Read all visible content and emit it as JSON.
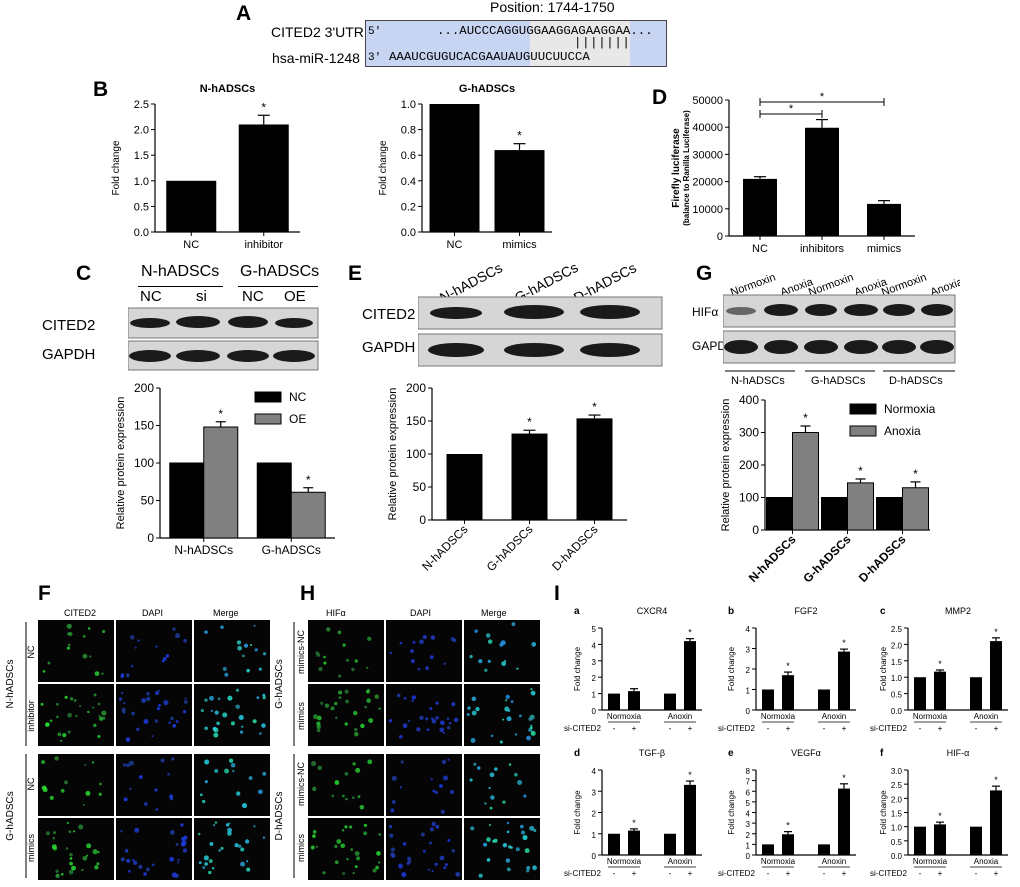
{
  "panelA": {
    "label": "A",
    "position_text": "Position: 1744-1750",
    "row1_name": "CITED2 3'UTR",
    "row1_prime": "5'",
    "row1_seq": "...AUCCCAGGUGGAAGGAGAAGGAA...",
    "row2_name": "hsa-miR-1248",
    "row2_prime": "3'",
    "row2_seq": "AAAUCGUGUCACGAAUAUGUUCUUCCA",
    "pairing": "| | | | | | |",
    "colors": {
      "box": "#c7d4f2",
      "highlight": "#e8e8e8"
    }
  },
  "panelB": {
    "label": "B"
  },
  "panelC": {
    "label": "C",
    "group1": "N-hADSCs",
    "group2": "G-hADSCs",
    "lanes": [
      "NC",
      "si",
      "NC",
      "OE"
    ],
    "bands": [
      "CITED2",
      "GAPDH"
    ]
  },
  "panelD": {
    "label": "D"
  },
  "panelE": {
    "label": "E",
    "lanes": [
      "N-hADSCs",
      "G-hADSCs",
      "D-hADSCs"
    ],
    "bands": [
      "CITED2",
      "GAPDH"
    ]
  },
  "panelF": {
    "label": "F",
    "headers": [
      "CITED2",
      "DAPI",
      "Merge"
    ],
    "group1": "N-hADSCs",
    "group2": "G-hADSCs",
    "rows": [
      "NC",
      "inhibitor",
      "NC",
      "mimics"
    ]
  },
  "panelG": {
    "label": "G",
    "lanes": [
      "Normoxin",
      "Anoxia",
      "Normoxin",
      "Anoxia",
      "Normoxin",
      "Anoxia"
    ],
    "bands": [
      "HIFα",
      "GAPDH"
    ],
    "groups": [
      "N-hADSCs",
      "G-hADSCs",
      "D-hADSCs"
    ]
  },
  "panelH": {
    "label": "H",
    "headers": [
      "HIFα",
      "DAPI",
      "Merge"
    ],
    "group1": "G-hADSCs",
    "group2": "D-hADSCs",
    "rows": [
      "mimics-NC",
      "mimics",
      "mimics-NC",
      "mimics"
    ]
  },
  "panelI": {
    "label": "I",
    "si_label": "si-CITED2",
    "minus": "-",
    "plus": "+"
  },
  "chart_data": [
    {
      "id": "B1",
      "type": "bar",
      "title": "N-hADSCs",
      "ylabel": "Fold change",
      "categories": [
        "NC",
        "inhibitor"
      ],
      "values": [
        1.0,
        2.1
      ],
      "errors": [
        0,
        0.18
      ],
      "sig": [
        "",
        "*"
      ],
      "ylim": [
        0,
        2.5
      ],
      "yticks": [
        0,
        0.5,
        1.0,
        1.5,
        2.0,
        2.5
      ]
    },
    {
      "id": "B2",
      "type": "bar",
      "title": "G-hADSCs",
      "ylabel": "Fold change",
      "categories": [
        "NC",
        "mimics"
      ],
      "values": [
        1.0,
        0.64
      ],
      "errors": [
        0,
        0.05
      ],
      "sig": [
        "",
        "*"
      ],
      "ylim": [
        0,
        1.0
      ],
      "yticks": [
        0,
        0.2,
        0.4,
        0.6,
        0.8,
        1.0
      ]
    },
    {
      "id": "D",
      "type": "bar",
      "ylabel": "Firefly luciferase",
      "ylabel2": "(balance to Ranilla Luciferase)",
      "categories": [
        "NC",
        "inhibitors",
        "mimics"
      ],
      "values": [
        21000,
        39800,
        11800
      ],
      "errors": [
        800,
        3000,
        1200
      ],
      "ylim": [
        0,
        50000
      ],
      "yticks": [
        0,
        10000,
        20000,
        30000,
        40000,
        50000
      ],
      "brackets": [
        {
          "from": 0,
          "to": 1,
          "label": "*"
        },
        {
          "from": 0,
          "to": 2,
          "label": "*"
        }
      ]
    },
    {
      "id": "C",
      "type": "bar",
      "ylabel": "Relative protein expression",
      "categories": [
        "N-hADSCs",
        "G-hADSCs"
      ],
      "series": [
        {
          "name": "NC",
          "values": [
            100,
            100
          ],
          "errors": [
            0,
            0
          ],
          "sig": [
            "",
            ""
          ],
          "color": "#000000"
        },
        {
          "name": "OE",
          "values": [
            148,
            61
          ],
          "errors": [
            7,
            6
          ],
          "sig": [
            "*",
            "*"
          ],
          "color": "#808080"
        }
      ],
      "ylim": [
        0,
        200
      ],
      "yticks": [
        0,
        50,
        100,
        150,
        200
      ],
      "legend": "top-right"
    },
    {
      "id": "E",
      "type": "bar",
      "ylabel": "Relative protein expression",
      "categories": [
        "N-hADSCs",
        "G-hADSCs",
        "D-hADSCs"
      ],
      "values": [
        100,
        131,
        154
      ],
      "errors": [
        0,
        5,
        5
      ],
      "sig": [
        "",
        "*",
        "*"
      ],
      "ylim": [
        0,
        200
      ],
      "yticks": [
        0,
        50,
        100,
        150,
        200
      ]
    },
    {
      "id": "G",
      "type": "bar",
      "ylabel": "Relative protein expression",
      "categories": [
        "N-hADSCs",
        "G-hADSCs",
        "D-hADSCs"
      ],
      "series": [
        {
          "name": "Normoxia",
          "values": [
            100,
            100,
            100
          ],
          "errors": [
            0,
            0,
            0
          ],
          "sig": [
            "",
            "",
            ""
          ],
          "color": "#000000"
        },
        {
          "name": "Anoxia",
          "values": [
            300,
            145,
            130
          ],
          "errors": [
            20,
            12,
            18
          ],
          "sig": [
            "*",
            "*",
            "*"
          ],
          "color": "#808080"
        }
      ],
      "ylim": [
        0,
        400
      ],
      "yticks": [
        0,
        100,
        200,
        300,
        400
      ],
      "legend": "top-right"
    },
    {
      "id": "Ia",
      "sub": "a",
      "type": "bar",
      "title": "CXCR4",
      "ylabel": "Fold change",
      "groups": [
        "Normoxia",
        "Anoxin"
      ],
      "values": [
        1.0,
        1.15,
        1.0,
        4.2
      ],
      "errors": [
        0,
        0.15,
        0,
        0.15
      ],
      "sig": [
        "",
        "",
        "",
        "*"
      ],
      "ylim": [
        0,
        5
      ],
      "yticks": [
        0,
        1,
        2,
        3,
        4,
        5
      ]
    },
    {
      "id": "Ib",
      "sub": "b",
      "type": "bar",
      "title": "FGF2",
      "ylabel": "Fold change",
      "groups": [
        "Normoxia",
        "Anoxin"
      ],
      "values": [
        1.0,
        1.7,
        1.0,
        2.85
      ],
      "errors": [
        0,
        0.15,
        0,
        0.12
      ],
      "sig": [
        "",
        "*",
        "",
        "*"
      ],
      "ylim": [
        0,
        4
      ],
      "yticks": [
        0,
        1,
        2,
        3,
        4
      ]
    },
    {
      "id": "Ic",
      "sub": "c",
      "type": "bar",
      "title": "MMP2",
      "ylabel": "Fold change",
      "groups": [
        "Normoxia",
        "Anoxin"
      ],
      "values": [
        1.0,
        1.17,
        1.0,
        2.1
      ],
      "errors": [
        0,
        0.05,
        0,
        0.1
      ],
      "sig": [
        "",
        "*",
        "",
        "*"
      ],
      "ylim": [
        0,
        2.5
      ],
      "yticks": [
        0,
        0.5,
        1.0,
        1.5,
        2.0,
        2.5
      ]
    },
    {
      "id": "Id",
      "sub": "d",
      "type": "bar",
      "title": "TGF-β",
      "ylabel": "Fold change",
      "groups": [
        "Normoxia",
        "Anoxin"
      ],
      "values": [
        1.0,
        1.15,
        1.0,
        3.3
      ],
      "errors": [
        0,
        0.08,
        0,
        0.18
      ],
      "sig": [
        "",
        "*",
        "",
        "*"
      ],
      "ylim": [
        0,
        4
      ],
      "yticks": [
        0,
        1,
        2,
        3,
        4
      ]
    },
    {
      "id": "Ie",
      "sub": "e",
      "type": "bar",
      "title": "VEGFα",
      "ylabel": "Fold change",
      "groups": [
        "Normoxia",
        "Anoxin"
      ],
      "values": [
        1.0,
        1.95,
        1.0,
        6.25
      ],
      "errors": [
        0,
        0.25,
        0,
        0.45
      ],
      "sig": [
        "",
        "*",
        "",
        "*"
      ],
      "ylim": [
        0,
        8
      ],
      "yticks": [
        0,
        1,
        2,
        3,
        4,
        5,
        6,
        7,
        8
      ]
    },
    {
      "id": "If",
      "sub": "f",
      "type": "bar",
      "title": "HIF-α",
      "ylabel": "Fold change",
      "groups": [
        "Normoxia",
        "Anoxia"
      ],
      "values": [
        1.0,
        1.08,
        1.0,
        2.28
      ],
      "errors": [
        0,
        0.08,
        0,
        0.15
      ],
      "sig": [
        "",
        "*",
        "",
        "*"
      ],
      "ylim": [
        0,
        3.0
      ],
      "yticks": [
        0,
        0.5,
        1.0,
        1.5,
        2.0,
        2.5,
        3.0
      ]
    }
  ]
}
